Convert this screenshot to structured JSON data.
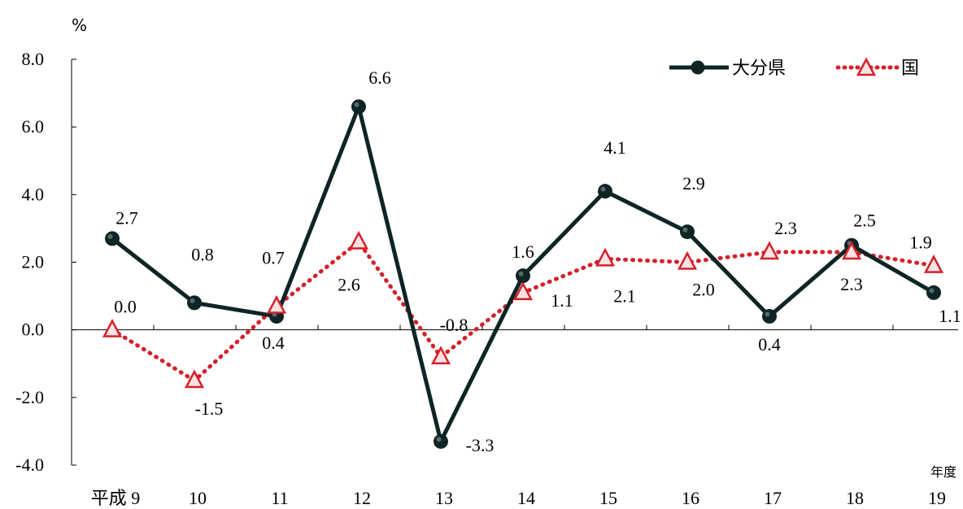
{
  "chart_data": {
    "type": "line",
    "ylabel": "%",
    "xlabel": "年度",
    "categories": [
      "平成 9",
      "10",
      "11",
      "12",
      "13",
      "14",
      "15",
      "16",
      "17",
      "18",
      "19"
    ],
    "ylim": [
      -4.0,
      8.0
    ],
    "yticks": [
      "8.0",
      "6.0",
      "4.0",
      "2.0",
      "0.0",
      "-2.0",
      "-4.0"
    ],
    "ytick_values": [
      8,
      6,
      4,
      2,
      0,
      -2,
      -4
    ],
    "grid": false,
    "legend_position": "top-right",
    "series": [
      {
        "name": "大分県",
        "values": [
          2.7,
          0.8,
          0.4,
          6.6,
          -3.3,
          1.6,
          4.1,
          2.9,
          0.4,
          2.5,
          1.1
        ],
        "labels": [
          "2.7",
          "0.8",
          "0.4",
          "6.6",
          "-3.3",
          "1.6",
          "4.1",
          "2.9",
          "0.4",
          "2.5",
          "1.1"
        ],
        "color": "#0f2424",
        "marker": "circle",
        "line_style": "solid"
      },
      {
        "name": "国",
        "values": [
          0.0,
          -1.5,
          0.7,
          2.6,
          -0.8,
          1.1,
          2.1,
          2.0,
          2.3,
          2.3,
          1.9
        ],
        "labels": [
          "0.0",
          "-1.5",
          "0.7",
          "2.6",
          "-0.8",
          "1.1",
          "2.1",
          "2.0",
          "2.3",
          "2.3",
          "1.9"
        ],
        "color": "#d4202a",
        "marker": "triangle",
        "line_style": "dotted"
      }
    ]
  }
}
